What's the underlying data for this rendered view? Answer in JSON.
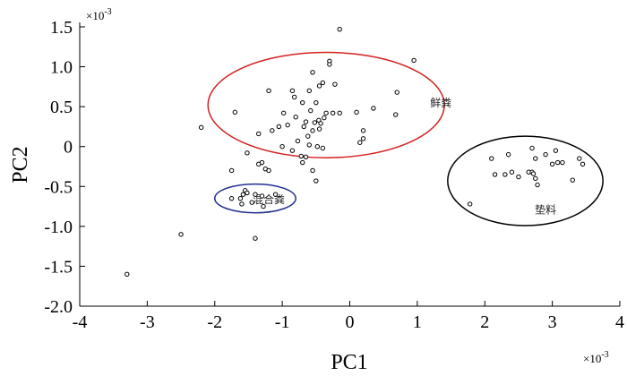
{
  "chart_data": {
    "type": "scatter",
    "title": "",
    "xlabel": "PC1",
    "ylabel": "PC2",
    "x_multiplier": "×10",
    "x_multiplier_exp": "-3",
    "y_multiplier": "×10",
    "y_multiplier_exp": "-3",
    "xlim": [
      -4,
      4
    ],
    "ylim": [
      -2.0,
      1.5
    ],
    "x_ticks": [
      "-4",
      "-3",
      "-2",
      "-1",
      "0",
      "1",
      "2",
      "3",
      "4"
    ],
    "y_ticks": [
      "1.5",
      "1.0",
      "0.5",
      "0",
      "-0.5",
      "-1.0",
      "-1.5",
      "-2.0"
    ],
    "grid": false,
    "colors": {
      "red_ellipse": "#d42020",
      "blue_ellipse": "#1f2f8f",
      "black_ellipse": "#000000"
    },
    "groups": [
      {
        "label": "鲜粪",
        "center": [
          -0.35,
          0.52
        ],
        "radii": [
          1.75,
          0.66
        ]
      },
      {
        "label": "混合粪",
        "center": [
          -1.4,
          -0.65
        ],
        "radii": [
          0.6,
          0.18
        ]
      },
      {
        "label": "垫料",
        "center": [
          2.6,
          -0.43
        ],
        "radii": [
          1.15,
          0.56
        ]
      }
    ],
    "points": [
      [
        -0.15,
        1.47
      ],
      [
        0.95,
        1.08
      ],
      [
        -0.3,
        1.07
      ],
      [
        -0.3,
        1.03
      ],
      [
        -0.55,
        0.93
      ],
      [
        -0.45,
        0.76
      ],
      [
        -0.22,
        0.78
      ],
      [
        -0.4,
        0.8
      ],
      [
        -1.2,
        0.7
      ],
      [
        -0.85,
        0.7
      ],
      [
        -0.82,
        0.62
      ],
      [
        -0.6,
        0.7
      ],
      [
        0.7,
        0.68
      ],
      [
        0.35,
        0.48
      ],
      [
        0.1,
        0.43
      ],
      [
        -0.7,
        0.55
      ],
      [
        -0.5,
        0.55
      ],
      [
        -0.58,
        0.45
      ],
      [
        -0.35,
        0.42
      ],
      [
        -0.25,
        0.42
      ],
      [
        -0.15,
        0.42
      ],
      [
        -0.38,
        0.36
      ],
      [
        -0.46,
        0.33
      ],
      [
        -0.43,
        0.29
      ],
      [
        -0.52,
        0.3
      ],
      [
        -0.65,
        0.31
      ],
      [
        -0.8,
        0.37
      ],
      [
        -0.98,
        0.42
      ],
      [
        -1.05,
        0.25
      ],
      [
        -0.92,
        0.27
      ],
      [
        -0.68,
        0.25
      ],
      [
        -0.55,
        0.2
      ],
      [
        -0.45,
        0.22
      ],
      [
        -0.62,
        0.13
      ],
      [
        -0.77,
        0.07
      ],
      [
        -0.6,
        0.02
      ],
      [
        -0.48,
        0.0
      ],
      [
        -0.4,
        -0.02
      ],
      [
        -0.85,
        -0.05
      ],
      [
        -1.0,
        0.0
      ],
      [
        -0.72,
        -0.12
      ],
      [
        -0.65,
        -0.13
      ],
      [
        -1.15,
        0.2
      ],
      [
        -1.35,
        0.16
      ],
      [
        0.2,
        0.2
      ],
      [
        0.2,
        0.1
      ],
      [
        0.15,
        0.05
      ],
      [
        0.68,
        0.4
      ],
      [
        -1.7,
        0.43
      ],
      [
        -2.2,
        0.24
      ],
      [
        -1.52,
        -0.08
      ],
      [
        -1.3,
        -0.2
      ],
      [
        -1.25,
        -0.28
      ],
      [
        -1.35,
        -0.22
      ],
      [
        -1.2,
        -0.3
      ],
      [
        -1.75,
        -0.3
      ],
      [
        -0.55,
        -0.3
      ],
      [
        -0.5,
        -0.43
      ],
      [
        -0.7,
        -0.2
      ],
      [
        -1.55,
        -0.55
      ],
      [
        -1.52,
        -0.58
      ],
      [
        -1.58,
        -0.6
      ],
      [
        -1.62,
        -0.65
      ],
      [
        -1.75,
        -0.65
      ],
      [
        -1.4,
        -0.6
      ],
      [
        -1.3,
        -0.62
      ],
      [
        -1.1,
        -0.6
      ],
      [
        -1.45,
        -0.7
      ],
      [
        -1.28,
        -0.75
      ],
      [
        -1.6,
        -0.72
      ],
      [
        2.35,
        -0.1
      ],
      [
        2.7,
        -0.02
      ],
      [
        2.9,
        -0.1
      ],
      [
        3.05,
        -0.05
      ],
      [
        3.4,
        -0.15
      ],
      [
        2.75,
        -0.15
      ],
      [
        3.08,
        -0.2
      ],
      [
        3.0,
        -0.22
      ],
      [
        3.15,
        -0.2
      ],
      [
        3.45,
        -0.22
      ],
      [
        2.1,
        -0.15
      ],
      [
        2.3,
        -0.35
      ],
      [
        2.4,
        -0.32
      ],
      [
        2.5,
        -0.38
      ],
      [
        2.65,
        -0.32
      ],
      [
        2.7,
        -0.32
      ],
      [
        2.72,
        -0.34
      ],
      [
        2.75,
        -0.4
      ],
      [
        2.78,
        -0.48
      ],
      [
        3.3,
        -0.42
      ],
      [
        2.15,
        -0.35
      ],
      [
        1.78,
        -0.72
      ],
      [
        -1.4,
        -1.15
      ],
      [
        -2.5,
        -1.1
      ],
      [
        -3.3,
        -1.6
      ]
    ]
  }
}
